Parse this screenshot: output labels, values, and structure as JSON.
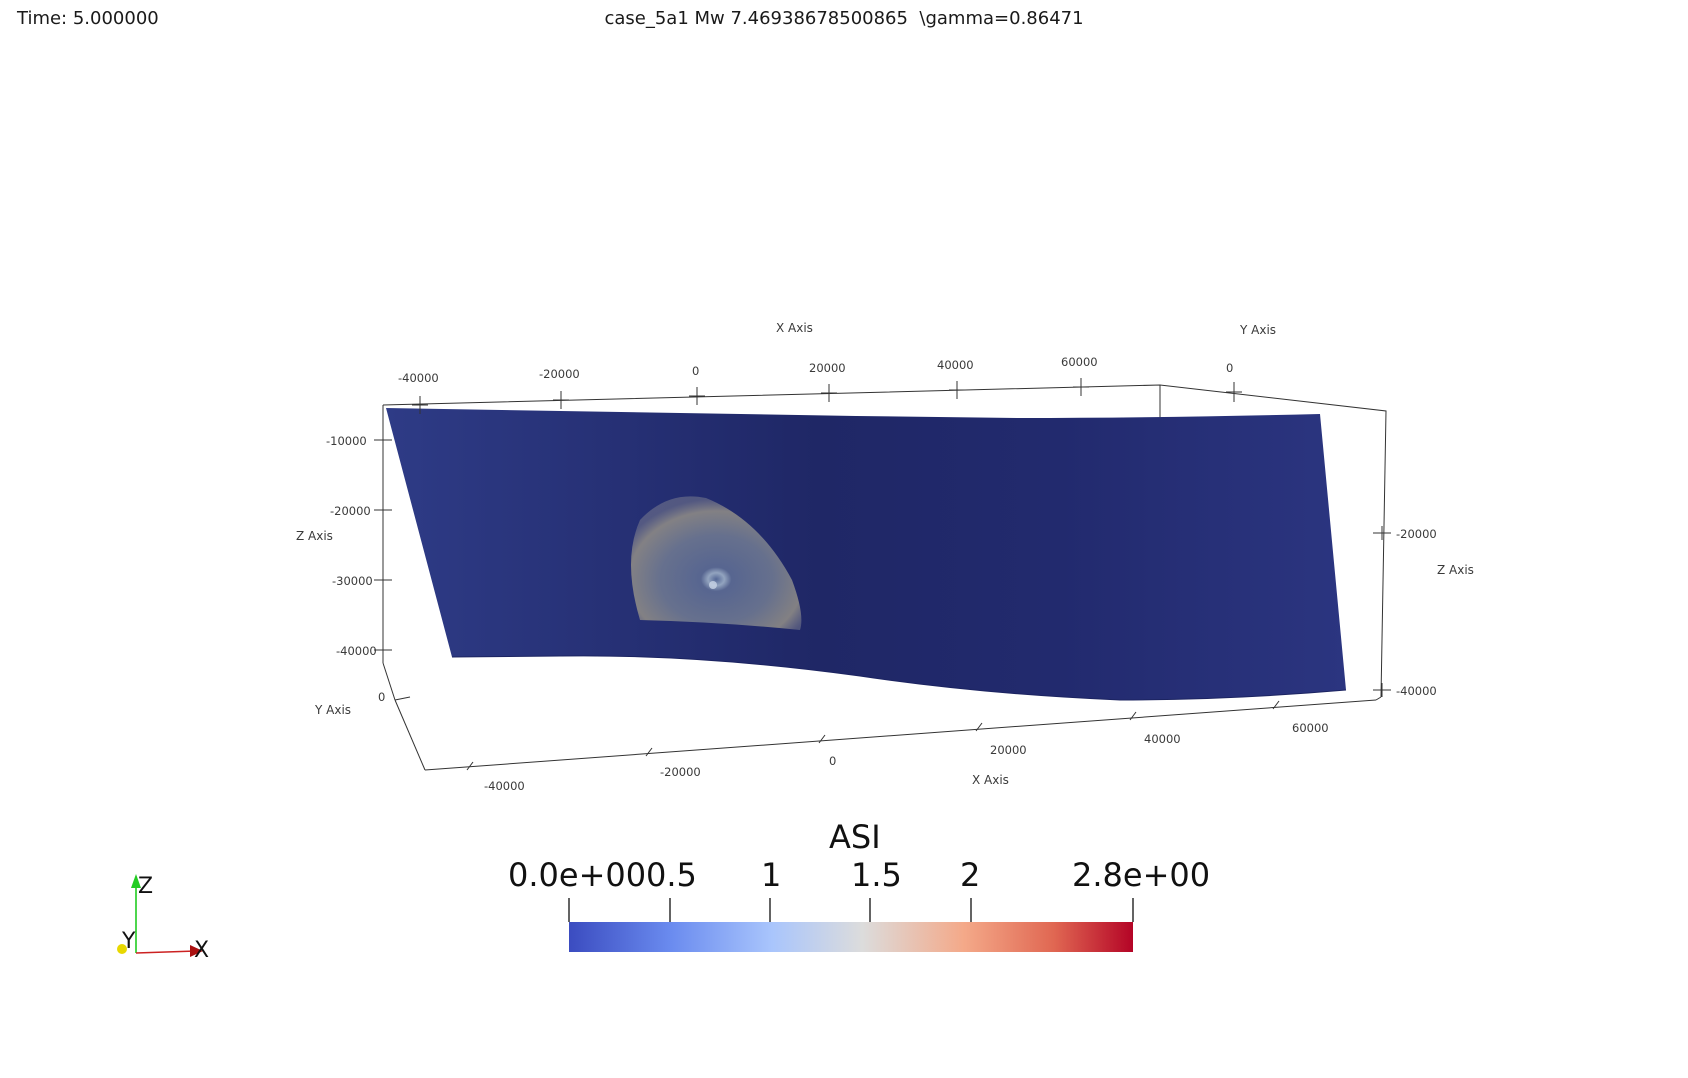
{
  "header": {
    "time": "Time: 5.000000",
    "title": "case_5a1 Mw 7.46938678500865  \\gamma=0.86471"
  },
  "axes": {
    "x_title": "X Axis",
    "y_title": "Y Axis",
    "z_title": "Z Axis",
    "top_x_ticks": [
      "-40000",
      "-20000",
      "0",
      "20000",
      "40000",
      "60000"
    ],
    "top_y_ticks": [
      "0"
    ],
    "left_z_ticks": [
      "-10000",
      "-20000",
      "-30000",
      "-40000"
    ],
    "left_y_ticks": [
      "0"
    ],
    "right_z_ticks": [
      "-20000",
      "-40000"
    ],
    "bottom_x_ticks": [
      "-40000",
      "-20000",
      "0",
      "20000",
      "40000",
      "60000"
    ]
  },
  "colorbar": {
    "title": "ASI",
    "ticks": [
      "0.0e+00",
      "0.5",
      "1",
      "1.5",
      "2",
      "2.8e+00"
    ],
    "range": [
      0,
      2.8
    ],
    "colors": [
      "#3b4cc0",
      "#8db0fe",
      "#dddcdc",
      "#f49a7b",
      "#b40426"
    ]
  },
  "orientation": {
    "x": "X",
    "y": "Y",
    "z": "Z",
    "x_color": "#cc2222",
    "y_color": "#e8d800",
    "z_color": "#22cc22"
  },
  "surface": {
    "background_color": "#26307a",
    "field": "ASI"
  }
}
